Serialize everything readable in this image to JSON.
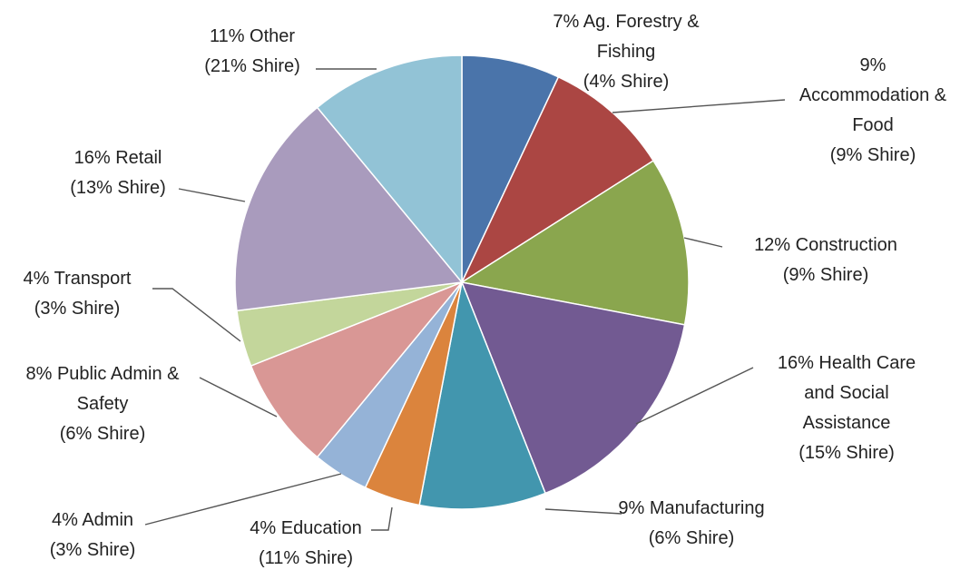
{
  "chart_data": {
    "type": "pie",
    "title": "",
    "slices": [
      {
        "key": "ag",
        "lines": [
          "7% Ag. Forestry &",
          "Fishing",
          "(4% Shire)"
        ],
        "value": 7,
        "shire": 4,
        "color": "#4a74aa"
      },
      {
        "key": "accom",
        "lines": [
          "9%",
          "Accommodation &",
          "Food",
          "(9% Shire)"
        ],
        "value": 9,
        "shire": 9,
        "color": "#ab4643"
      },
      {
        "key": "construction",
        "lines": [
          "12% Construction",
          "(9% Shire)"
        ],
        "value": 12,
        "shire": 9,
        "color": "#8aa64e"
      },
      {
        "key": "health",
        "lines": [
          "16% Health Care",
          "and Social",
          "Assistance",
          "(15% Shire)"
        ],
        "value": 16,
        "shire": 15,
        "color": "#725a92"
      },
      {
        "key": "manufacturing",
        "lines": [
          "9% Manufacturing",
          "(6% Shire)"
        ],
        "value": 9,
        "shire": 6,
        "color": "#4296ae"
      },
      {
        "key": "education",
        "lines": [
          "4% Education",
          "(11% Shire)"
        ],
        "value": 4,
        "shire": 11,
        "color": "#db843d"
      },
      {
        "key": "admin",
        "lines": [
          "4% Admin",
          "(3% Shire)"
        ],
        "value": 4,
        "shire": 3,
        "color": "#95b3d7"
      },
      {
        "key": "public",
        "lines": [
          "8% Public Admin &",
          "Safety",
          "(6% Shire)"
        ],
        "value": 8,
        "shire": 6,
        "color": "#d99795"
      },
      {
        "key": "transport",
        "lines": [
          "4% Transport",
          "(3% Shire)"
        ],
        "value": 4,
        "shire": 3,
        "color": "#c3d69b"
      },
      {
        "key": "retail",
        "lines": [
          "16% Retail",
          "(13% Shire)"
        ],
        "value": 16,
        "shire": 13,
        "color": "#a99bbd"
      },
      {
        "key": "other",
        "lines": [
          "11% Other",
          "(21% Shire)"
        ],
        "value": 11,
        "shire": 21,
        "color": "#92c3d6"
      }
    ],
    "legend": "none"
  }
}
